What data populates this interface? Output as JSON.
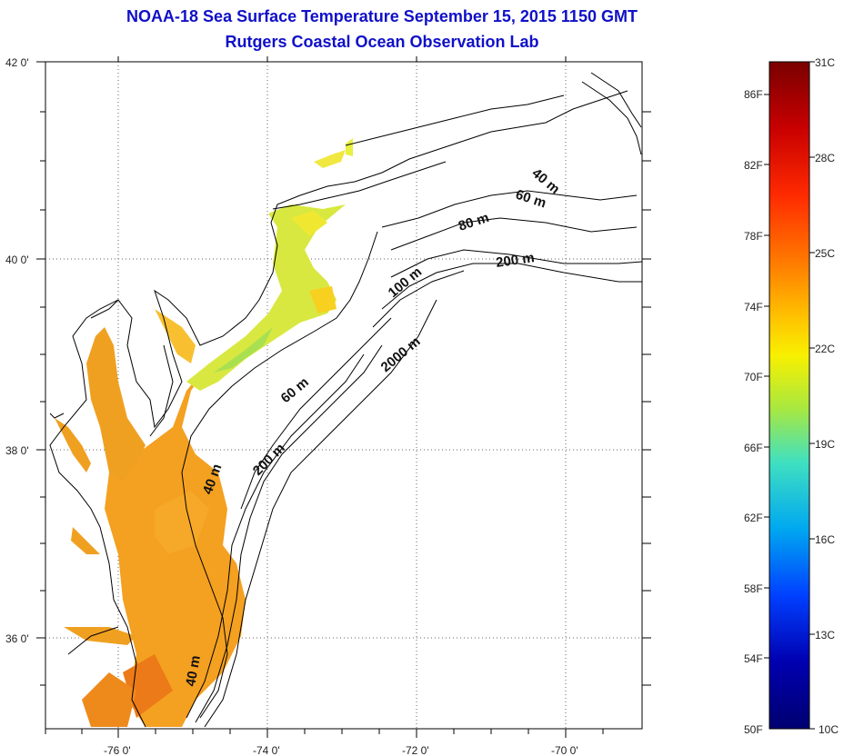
{
  "header": {
    "title": "NOAA-18 Sea Surface Temperature September 15, 2015 1150 GMT",
    "subtitle": "Rutgers Coastal Ocean Observation Lab"
  },
  "map": {
    "lat_labels": [
      "42 0'",
      "40 0'",
      "38 0'",
      "36 0'"
    ],
    "lon_labels": [
      "-76 0'",
      "-74 0'",
      "-72 0'",
      "-70 0'"
    ],
    "depth_contour_labels": [
      {
        "text": "40 m",
        "rotate": 40
      },
      {
        "text": "60 m",
        "rotate": 18
      },
      {
        "text": "80 m",
        "rotate": -18
      },
      {
        "text": "200 m",
        "rotate": -8
      },
      {
        "text": "100 m",
        "rotate": -40
      },
      {
        "text": "2000 m",
        "rotate": -40
      },
      {
        "text": "60 m",
        "rotate": -40
      },
      {
        "text": "200 m",
        "rotate": -45
      },
      {
        "text": "40 m",
        "rotate": -70
      },
      {
        "text": "40 m",
        "rotate": -80
      }
    ]
  },
  "colorbar": {
    "left_labels": [
      "86F",
      "82F",
      "78F",
      "74F",
      "70F",
      "66F",
      "62F",
      "58F",
      "54F",
      "50F"
    ],
    "right_labels": [
      "31C",
      "28C",
      "25C",
      "22C",
      "19C",
      "16C",
      "13C",
      "10C"
    ],
    "colors": [
      "#7a0000",
      "#c80000",
      "#ff2a00",
      "#ff7a00",
      "#ffc000",
      "#f8f000",
      "#a8e840",
      "#40e0c0",
      "#00a8f0",
      "#0040ff",
      "#0000b0",
      "#000070"
    ]
  }
}
